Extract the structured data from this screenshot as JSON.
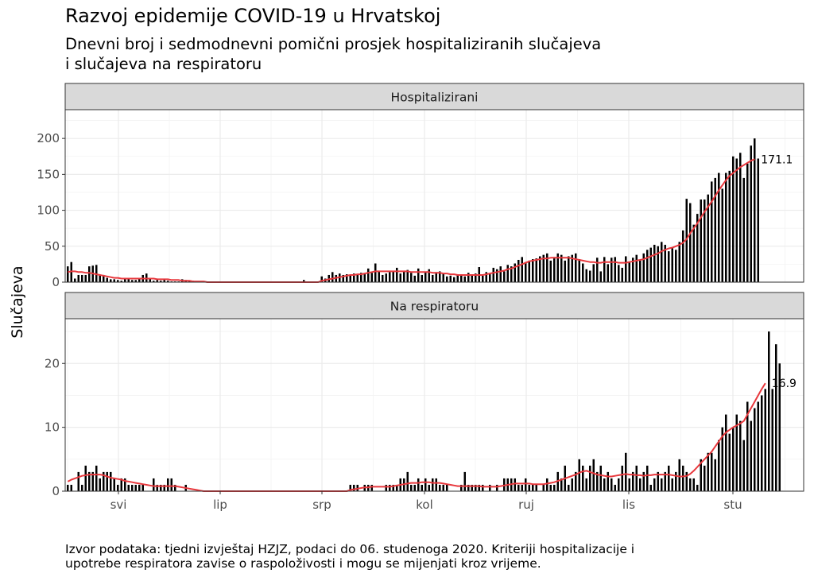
{
  "title": "Razvoj epidemije COVID-19 u Hrvatskoj",
  "subtitle_lines": [
    "Dnevni broj i sedmodnevni pomični prosjek hospitaliziranih slučajeva",
    "i slučajeva na respiratoru"
  ],
  "caption_lines": [
    "Izvor podataka: tjedni izvještaj HZJZ, podaci do 06. studenoga 2020. Kriteriji hospitalizacije i",
    "upotrebe respiratora zavise o raspoloživosti i mogu se mijenjati kroz vrijeme."
  ],
  "colors": {
    "bar": "#000000",
    "avg": "#e8383d",
    "strip_bg": "#d9d9d9",
    "grid": "#ebebeb"
  },
  "chart_data": {
    "type": "bar",
    "ylabel": "Slučajeva",
    "x_tick_labels": [
      "svi",
      "lip",
      "srp",
      "kol",
      "ruj",
      "lis",
      "stu"
    ],
    "grid": true,
    "panels": [
      {
        "name": "Hospitalizirani",
        "ylim": [
          0,
          240
        ],
        "y_ticks": [
          0,
          50,
          100,
          150,
          200
        ],
        "end_label": "171.1",
        "daily": [
          22,
          28,
          5,
          10,
          10,
          10,
          22,
          23,
          24,
          10,
          10,
          6,
          4,
          4,
          3,
          2,
          4,
          5,
          3,
          3,
          4,
          10,
          12,
          5,
          2,
          3,
          2,
          3,
          2,
          1,
          1,
          1,
          4,
          3,
          2,
          2,
          1,
          0,
          1,
          0,
          0,
          0,
          0,
          0,
          0,
          0,
          0,
          0,
          0,
          0,
          0,
          0,
          0,
          0,
          0,
          0,
          0,
          0,
          0,
          0,
          0,
          0,
          0,
          0,
          0,
          0,
          3,
          0,
          0,
          0,
          0,
          8,
          5,
          10,
          14,
          10,
          12,
          10,
          11,
          9,
          12,
          10,
          13,
          11,
          19,
          13,
          26,
          15,
          10,
          12,
          14,
          15,
          20,
          12,
          16,
          17,
          13,
          9,
          19,
          10,
          14,
          18,
          10,
          14,
          15,
          12,
          8,
          9,
          7,
          10,
          9,
          8,
          13,
          10,
          12,
          21,
          9,
          14,
          11,
          20,
          18,
          22,
          15,
          24,
          22,
          26,
          31,
          35,
          28,
          30,
          32,
          33,
          36,
          38,
          40,
          30,
          35,
          40,
          38,
          30,
          36,
          38,
          40,
          32,
          26,
          18,
          16,
          25,
          34,
          15,
          35,
          25,
          34,
          35,
          24,
          20,
          36,
          28,
          34,
          38,
          30,
          40,
          45,
          48,
          52,
          50,
          56,
          52,
          43,
          48,
          45,
          56,
          72,
          116,
          110,
          80,
          95,
          115,
          115,
          122,
          140,
          145,
          152,
          130,
          152,
          155,
          175,
          172,
          180,
          145,
          165,
          190,
          200,
          172
        ],
        "avg": [
          14,
          15,
          15,
          14,
          14,
          13,
          13,
          12,
          11,
          10,
          9,
          8,
          7,
          6,
          6,
          5,
          5,
          5,
          5,
          5,
          5,
          5,
          5,
          5,
          5,
          4,
          4,
          4,
          4,
          3,
          3,
          3,
          2,
          2,
          2,
          1,
          1,
          1,
          1,
          0,
          0,
          0,
          0,
          0,
          0,
          0,
          0,
          0,
          0,
          0,
          0,
          0,
          0,
          0,
          0,
          0,
          0,
          0,
          0,
          0,
          0,
          0,
          0,
          0,
          0,
          0,
          0,
          0,
          0,
          0,
          0,
          2,
          3,
          4,
          5,
          6,
          7,
          8,
          9,
          10,
          10,
          11,
          11,
          12,
          13,
          14,
          15,
          15,
          15,
          15,
          15,
          15,
          15,
          15,
          15,
          15,
          14,
          14,
          14,
          14,
          14,
          14,
          13,
          13,
          13,
          12,
          12,
          11,
          11,
          10,
          10,
          10,
          10,
          10,
          10,
          10,
          10,
          11,
          12,
          13,
          14,
          15,
          16,
          18,
          19,
          21,
          23,
          25,
          27,
          29,
          30,
          31,
          32,
          33,
          33,
          34,
          34,
          34,
          34,
          34,
          34,
          33,
          32,
          31,
          30,
          29,
          28,
          28,
          27,
          27,
          28,
          28,
          28,
          28,
          27,
          27,
          27,
          28,
          29,
          30,
          31,
          32,
          34,
          36,
          38,
          40,
          43,
          45,
          47,
          48,
          50,
          52,
          55,
          60,
          68,
          75,
          82,
          90,
          98,
          105,
          112,
          120,
          128,
          135,
          142,
          148,
          152,
          156,
          160,
          163,
          166,
          169,
          171.1
        ]
      },
      {
        "name": "Na respiratoru",
        "ylim": [
          0,
          27
        ],
        "y_ticks": [
          0,
          10,
          20
        ],
        "end_label": "16.9",
        "daily": [
          1,
          1,
          0,
          3,
          1,
          4,
          3,
          3,
          4,
          2,
          3,
          3,
          3,
          2,
          1,
          2,
          2,
          1,
          1,
          1,
          1,
          1,
          0,
          0,
          2,
          1,
          1,
          1,
          2,
          2,
          1,
          0,
          0,
          1,
          0,
          0,
          0,
          0,
          0,
          0,
          0,
          0,
          0,
          0,
          0,
          0,
          0,
          0,
          0,
          0,
          0,
          0,
          0,
          0,
          0,
          0,
          0,
          0,
          0,
          0,
          0,
          0,
          0,
          0,
          0,
          0,
          0,
          0,
          0,
          0,
          0,
          0,
          0,
          0,
          0,
          0,
          0,
          0,
          0,
          1,
          1,
          1,
          0,
          1,
          1,
          1,
          0,
          0,
          0,
          1,
          1,
          1,
          1,
          2,
          2,
          3,
          1,
          1,
          2,
          1,
          2,
          1,
          2,
          2,
          1,
          1,
          1,
          0,
          0,
          0,
          1,
          3,
          1,
          1,
          1,
          1,
          1,
          0,
          1,
          0,
          1,
          0,
          2,
          2,
          2,
          2,
          1,
          1,
          2,
          1,
          1,
          1,
          0,
          1,
          2,
          1,
          1,
          3,
          2,
          4,
          1,
          2,
          3,
          5,
          4,
          2,
          4,
          5,
          3,
          4,
          2,
          3,
          2,
          1,
          2,
          4,
          6,
          2,
          3,
          4,
          2,
          3,
          4,
          1,
          2,
          3,
          2,
          3,
          4,
          2,
          3,
          5,
          4,
          3,
          2,
          2,
          1,
          5,
          4,
          6,
          6,
          5,
          8,
          10,
          12,
          9,
          10,
          12,
          11,
          8,
          14,
          11,
          13,
          14,
          15,
          16,
          25,
          16,
          23,
          20
        ],
        "avg": [
          1.5,
          1.8,
          2.0,
          2.2,
          2.4,
          2.5,
          2.6,
          2.6,
          2.6,
          2.6,
          2.5,
          2.3,
          2.1,
          2.0,
          1.9,
          1.8,
          1.6,
          1.5,
          1.4,
          1.3,
          1.2,
          1.1,
          1.0,
          0.9,
          0.8,
          0.8,
          0.8,
          0.8,
          0.8,
          0.8,
          0.8,
          0.7,
          0.6,
          0.5,
          0.4,
          0.3,
          0.2,
          0.1,
          0,
          0,
          0,
          0,
          0,
          0,
          0,
          0,
          0,
          0,
          0,
          0,
          0,
          0,
          0,
          0,
          0,
          0,
          0,
          0,
          0,
          0,
          0,
          0,
          0,
          0,
          0,
          0,
          0,
          0,
          0,
          0,
          0,
          0,
          0,
          0,
          0,
          0,
          0,
          0,
          0,
          0.2,
          0.3,
          0.4,
          0.5,
          0.6,
          0.6,
          0.7,
          0.7,
          0.7,
          0.7,
          0.7,
          0.7,
          0.8,
          0.9,
          1.0,
          1.1,
          1.2,
          1.3,
          1.3,
          1.3,
          1.4,
          1.4,
          1.4,
          1.3,
          1.3,
          1.3,
          1.2,
          1.1,
          1.0,
          0.9,
          0.8,
          0.8,
          0.8,
          0.8,
          0.8,
          0.8,
          0.8,
          0.7,
          0.7,
          0.7,
          0.7,
          0.7,
          0.8,
          0.9,
          1.0,
          1.1,
          1.2,
          1.2,
          1.2,
          1.2,
          1.2,
          1.1,
          1.1,
          1.1,
          1.1,
          1.2,
          1.3,
          1.4,
          1.6,
          1.8,
          2.0,
          2.2,
          2.4,
          2.6,
          2.9,
          3.1,
          3.2,
          3.0,
          2.8,
          2.6,
          2.5,
          2.4,
          2.3,
          2.3,
          2.4,
          2.5,
          2.6,
          2.7,
          2.6,
          2.6,
          2.5,
          2.5,
          2.4,
          2.5,
          2.5,
          2.6,
          2.6,
          2.6,
          2.6,
          2.6,
          2.5,
          2.4,
          2.3,
          2.3,
          2.4,
          2.7,
          3.2,
          3.8,
          4.4,
          5.0,
          5.6,
          6.2,
          7.0,
          7.8,
          8.6,
          9.2,
          9.6,
          10.0,
          10.3,
          10.6,
          11.0,
          12.0,
          13.0,
          14.0,
          15.0,
          16.0,
          16.9
        ]
      }
    ]
  }
}
